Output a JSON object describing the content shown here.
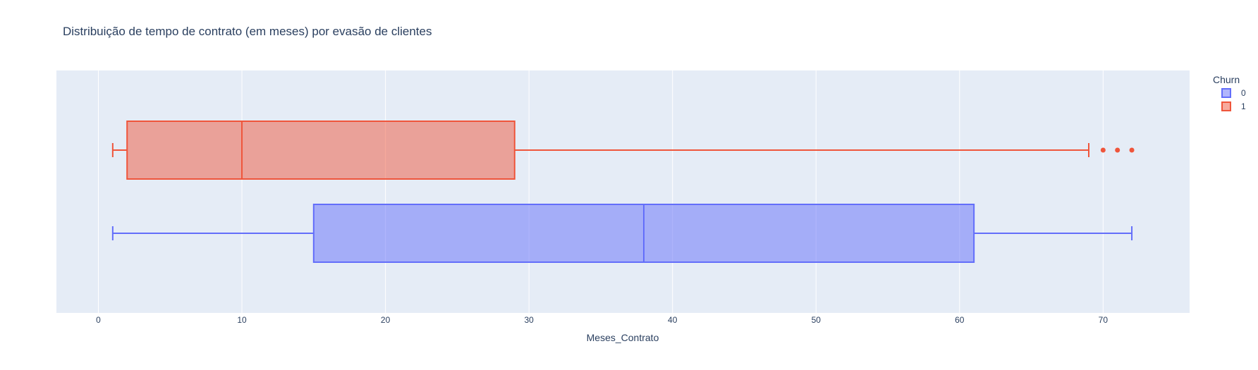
{
  "chart_data": {
    "type": "box",
    "orientation": "horizontal",
    "title": "Distribuição de tempo de contrato (em meses) por evasão de clientes",
    "xlabel": "Meses_Contrato",
    "ylabel": "",
    "xlim": [
      -3,
      76
    ],
    "xticks": [
      0,
      10,
      20,
      30,
      40,
      50,
      60,
      70
    ],
    "grid": true,
    "legend": {
      "title": "Churn",
      "placement": "top-right"
    },
    "series": [
      {
        "name": "0",
        "color": "#636efa",
        "min": 1,
        "q1": 15,
        "median": 38,
        "q3": 61,
        "max": 72,
        "outliers": []
      },
      {
        "name": "1",
        "color": "#ef553b",
        "min": 1,
        "q1": 2,
        "median": 10,
        "q3": 29,
        "max": 69,
        "outliers": [
          70,
          71,
          72
        ]
      }
    ]
  }
}
